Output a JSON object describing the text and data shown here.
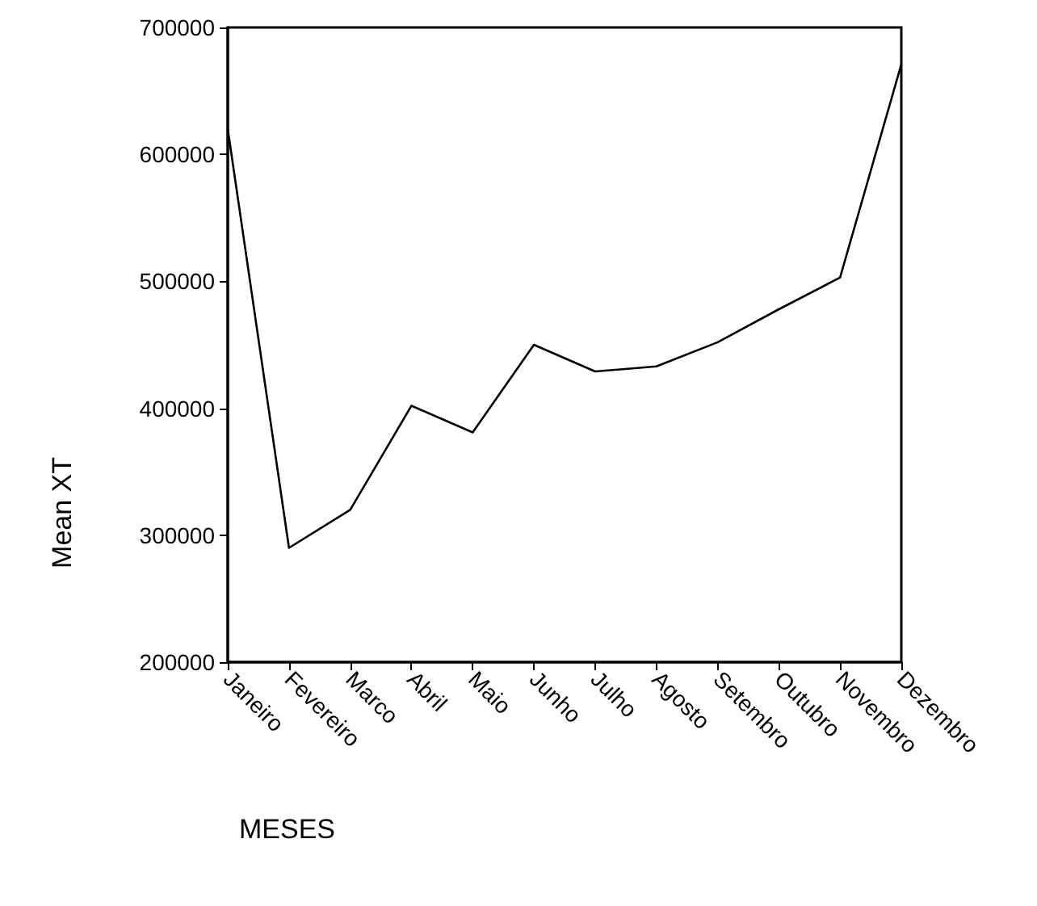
{
  "chart_data": {
    "type": "line",
    "xlabel": "MESES",
    "ylabel": "Mean XT",
    "categories": [
      "Janeiro",
      "Fevereiro",
      "Marco",
      "Abril",
      "Maio",
      "Junho",
      "Julho",
      "Agosto",
      "Setembro",
      "Outubro",
      "Novembro",
      "Dezembro"
    ],
    "series": [
      {
        "color": "#000000",
        "values": [
          620000,
          290000,
          320000,
          402000,
          381000,
          450000,
          429000,
          433000,
          452000,
          478000,
          503000,
          671000
        ]
      }
    ],
    "ylim": [
      200000,
      700000
    ],
    "yticks": [
      200000,
      300000,
      400000,
      500000,
      600000,
      700000
    ],
    "grid": false,
    "marker": "none",
    "line_style": "solid"
  }
}
